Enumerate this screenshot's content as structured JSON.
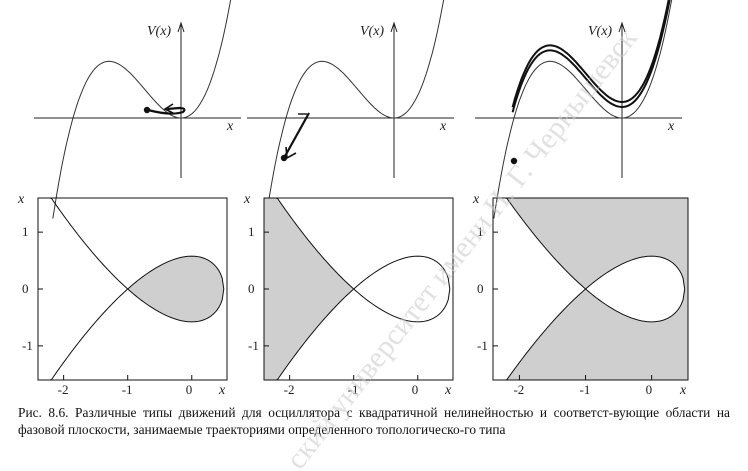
{
  "potential_panels": [
    {
      "ylabel": "V(x)",
      "xlabel": "x"
    },
    {
      "ylabel": "V(x)",
      "xlabel": "x"
    },
    {
      "ylabel": "V(x)",
      "xlabel": "x"
    }
  ],
  "phase_panels": [
    {
      "ylabel": "x",
      "xlabel": "x",
      "shading": "inside-loop"
    },
    {
      "ylabel": "x",
      "xlabel": "x",
      "shading": "left-wedge"
    },
    {
      "ylabel": "x",
      "xlabel": "x",
      "shading": "outside-separatrix"
    }
  ],
  "chart_data": [
    {
      "type": "line",
      "title": "",
      "xlabel": "x",
      "ylabel": "V(x)",
      "series": [
        {
          "description_values": "cubic potential V = x^2/2 + x^3/3"
        }
      ]
    },
    {
      "type": "line",
      "title": "",
      "xlabel": "x",
      "ylabel": "x",
      "xticks": [
        "-2",
        "-1",
        "0"
      ],
      "yticks": [
        "1",
        "0",
        "-1"
      ],
      "xlim": [
        -2.4,
        0.55
      ],
      "ylim": [
        -1.6,
        1.6
      ]
    },
    {
      "type": "line",
      "title": "",
      "xlabel": "x",
      "ylabel": "x",
      "xticks": [
        "-2",
        "-1",
        "0"
      ],
      "yticks": [
        "1",
        "0",
        "-1"
      ],
      "xlim": [
        -2.4,
        0.55
      ],
      "ylim": [
        -1.6,
        1.6
      ]
    },
    {
      "type": "line",
      "title": "",
      "xlabel": "x",
      "ylabel": "x",
      "xticks": [
        "-2",
        "-1",
        "0"
      ],
      "yticks": [
        "1",
        "0",
        "-1"
      ],
      "xlim": [
        -2.4,
        0.55
      ],
      "ylim": [
        -1.6,
        1.6
      ]
    }
  ],
  "watermark": "ский университет имени Н. Г. Чернышевск",
  "caption": "Рис. 8.6. Различные типы движений для осциллятора с квадратичной нелинейностью и соответст-вующие области на фазовой плоскости, занимаемые траекториями определенного топологическо-го типа"
}
